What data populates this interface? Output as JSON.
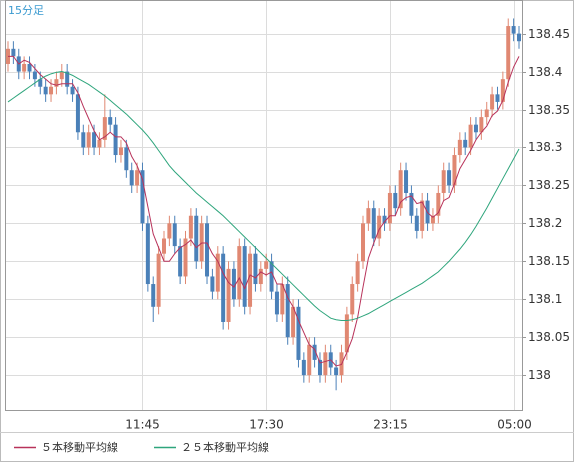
{
  "chart_data": {
    "type": "candlestick",
    "title": "15分足",
    "categories": [
      null,
      null,
      null,
      null,
      null,
      null,
      null,
      null,
      null,
      null,
      null,
      null,
      null,
      null,
      null,
      null,
      null,
      null,
      null,
      null,
      null,
      null,
      null,
      null,
      null,
      "11:45",
      null,
      null,
      null,
      null,
      null,
      null,
      null,
      null,
      null,
      null,
      null,
      null,
      null,
      null,
      null,
      null,
      null,
      null,
      null,
      null,
      null,
      null,
      "17:30",
      null,
      null,
      null,
      null,
      null,
      null,
      null,
      null,
      null,
      null,
      null,
      null,
      null,
      null,
      null,
      null,
      null,
      null,
      null,
      null,
      null,
      null,
      "23:15",
      null,
      null,
      null,
      null,
      null,
      null,
      null,
      null,
      null,
      null,
      null,
      null,
      null,
      null,
      null,
      null,
      null,
      null,
      null,
      null,
      null,
      null,
      "05:00",
      null
    ],
    "open": [
      138.41,
      138.43,
      138.42,
      138.4,
      138.41,
      138.4,
      138.39,
      138.38,
      138.37,
      138.38,
      138.39,
      138.4,
      138.38,
      138.37,
      138.32,
      138.3,
      138.32,
      138.3,
      138.31,
      138.34,
      138.33,
      138.29,
      138.3,
      138.27,
      138.25,
      138.27,
      138.2,
      138.12,
      138.09,
      138.16,
      138.18,
      138.2,
      138.17,
      138.13,
      138.18,
      138.21,
      138.15,
      138.2,
      138.13,
      138.11,
      138.16,
      138.07,
      138.14,
      138.1,
      138.17,
      138.09,
      138.16,
      138.12,
      138.14,
      138.15,
      138.11,
      138.08,
      138.12,
      138.05,
      138.09,
      138.02,
      138.0,
      138.04,
      138.02,
      138.0,
      138.03,
      138.01,
      138.0,
      138.03,
      138.08,
      138.12,
      138.15,
      138.2,
      138.22,
      138.18,
      138.21,
      138.2,
      138.24,
      138.22,
      138.27,
      138.24,
      138.21,
      138.19,
      138.23,
      138.2,
      138.21,
      138.24,
      138.27,
      138.25,
      138.29,
      138.31,
      138.3,
      138.33,
      138.32,
      138.34,
      138.35,
      138.37,
      138.36,
      138.39,
      138.46,
      138.45
    ],
    "high": [
      138.44,
      138.44,
      138.43,
      138.42,
      138.42,
      138.41,
      138.4,
      138.39,
      138.39,
      138.4,
      138.41,
      138.41,
      138.39,
      138.38,
      138.33,
      138.33,
      138.33,
      138.32,
      138.37,
      138.35,
      138.34,
      138.31,
      138.31,
      138.28,
      138.28,
      138.28,
      138.21,
      138.13,
      138.17,
      138.19,
      138.21,
      138.21,
      138.18,
      138.19,
      138.22,
      138.22,
      138.21,
      138.21,
      138.14,
      138.17,
      138.17,
      138.15,
      138.15,
      138.18,
      138.18,
      138.17,
      138.17,
      138.15,
      138.16,
      138.16,
      138.12,
      138.13,
      138.13,
      138.1,
      138.1,
      138.03,
      138.05,
      138.05,
      138.03,
      138.04,
      138.04,
      138.02,
      138.04,
      138.09,
      138.13,
      138.16,
      138.21,
      138.23,
      138.23,
      138.22,
      138.22,
      138.25,
      138.25,
      138.28,
      138.28,
      138.25,
      138.22,
      138.24,
      138.24,
      138.22,
      138.25,
      138.28,
      138.28,
      138.3,
      138.32,
      138.32,
      138.34,
      138.34,
      138.35,
      138.36,
      138.38,
      138.38,
      138.4,
      138.47,
      138.47,
      138.46
    ],
    "low": [
      138.4,
      138.41,
      138.39,
      138.39,
      138.39,
      138.38,
      138.37,
      138.36,
      138.36,
      138.37,
      138.38,
      138.37,
      138.36,
      138.31,
      138.29,
      138.29,
      138.29,
      138.29,
      138.3,
      138.32,
      138.28,
      138.28,
      138.26,
      138.24,
      138.24,
      138.19,
      138.11,
      138.07,
      138.08,
      138.15,
      138.17,
      138.16,
      138.12,
      138.12,
      138.17,
      138.14,
      138.14,
      138.12,
      138.1,
      138.1,
      138.06,
      138.06,
      138.09,
      138.09,
      138.08,
      138.08,
      138.11,
      138.11,
      138.13,
      138.1,
      138.07,
      138.07,
      138.04,
      138.04,
      138.01,
      137.99,
      137.99,
      138.01,
      137.99,
      137.99,
      138.0,
      137.98,
      137.99,
      138.02,
      138.07,
      138.11,
      138.14,
      138.19,
      138.17,
      138.17,
      138.19,
      138.19,
      138.21,
      138.21,
      138.23,
      138.2,
      138.18,
      138.18,
      138.19,
      138.19,
      138.2,
      138.23,
      138.24,
      138.24,
      138.28,
      138.29,
      138.29,
      138.31,
      138.31,
      138.33,
      138.34,
      138.35,
      138.35,
      138.38,
      138.44,
      138.43
    ],
    "close": [
      138.43,
      138.42,
      138.4,
      138.41,
      138.4,
      138.39,
      138.38,
      138.37,
      138.38,
      138.39,
      138.4,
      138.38,
      138.37,
      138.32,
      138.3,
      138.32,
      138.3,
      138.31,
      138.34,
      138.33,
      138.29,
      138.3,
      138.27,
      138.25,
      138.27,
      138.2,
      138.12,
      138.09,
      138.16,
      138.18,
      138.2,
      138.17,
      138.13,
      138.18,
      138.21,
      138.15,
      138.2,
      138.13,
      138.11,
      138.16,
      138.07,
      138.14,
      138.1,
      138.17,
      138.09,
      138.16,
      138.12,
      138.14,
      138.15,
      138.11,
      138.08,
      138.12,
      138.05,
      138.09,
      138.02,
      138.0,
      138.04,
      138.02,
      138.0,
      138.03,
      138.01,
      138.0,
      138.03,
      138.08,
      138.12,
      138.15,
      138.2,
      138.22,
      138.18,
      138.21,
      138.2,
      138.24,
      138.22,
      138.27,
      138.24,
      138.21,
      138.19,
      138.23,
      138.2,
      138.21,
      138.24,
      138.27,
      138.25,
      138.29,
      138.31,
      138.3,
      138.33,
      138.32,
      138.34,
      138.35,
      138.37,
      138.36,
      138.39,
      138.46,
      138.45,
      138.44
    ],
    "up_color": "#e08872",
    "down_color": "#4a80b8",
    "series": [
      {
        "name": "５本移動平均線",
        "color": "#b8325a",
        "values": [
          138.42,
          138.42,
          138.41,
          138.415,
          138.412,
          138.404,
          138.396,
          138.39,
          138.384,
          138.382,
          138.384,
          138.384,
          138.384,
          138.372,
          138.354,
          138.338,
          138.322,
          138.31,
          138.314,
          138.32,
          138.314,
          138.314,
          138.306,
          138.288,
          138.276,
          138.258,
          138.222,
          138.186,
          138.168,
          138.15,
          138.15,
          138.16,
          138.168,
          138.172,
          138.178,
          138.168,
          138.174,
          138.174,
          138.16,
          138.15,
          138.134,
          138.122,
          138.116,
          138.128,
          138.114,
          138.132,
          138.128,
          138.136,
          138.132,
          138.136,
          138.12,
          138.12,
          138.102,
          138.09,
          138.072,
          138.056,
          138.04,
          138.034,
          138.016,
          138.018,
          138.02,
          138.012,
          138.014,
          138.03,
          138.048,
          138.076,
          138.116,
          138.154,
          138.174,
          138.192,
          138.202,
          138.21,
          138.21,
          138.228,
          138.234,
          138.236,
          138.226,
          138.228,
          138.214,
          138.208,
          138.214,
          138.23,
          138.234,
          138.252,
          138.272,
          138.284,
          138.296,
          138.31,
          138.32,
          138.328,
          138.342,
          138.348,
          138.362,
          138.386,
          138.406,
          138.42
        ]
      },
      {
        "name": "２５本移動平均線",
        "color": "#2ea57c",
        "values": [
          138.36,
          138.365,
          138.37,
          138.375,
          138.38,
          138.385,
          138.39,
          138.394,
          138.397,
          138.399,
          138.4,
          138.398,
          138.395,
          138.391,
          138.387,
          138.383,
          138.378,
          138.373,
          138.368,
          138.362,
          138.356,
          138.35,
          138.344,
          138.337,
          138.33,
          138.323,
          138.315,
          138.306,
          138.296,
          138.286,
          138.276,
          138.268,
          138.261,
          138.254,
          138.247,
          138.24,
          138.234,
          138.228,
          138.222,
          138.216,
          138.21,
          138.203,
          138.196,
          138.189,
          138.182,
          138.175,
          138.168,
          138.161,
          138.154,
          138.147,
          138.14,
          138.133,
          138.126,
          138.119,
          138.112,
          138.105,
          138.098,
          138.091,
          138.085,
          138.08,
          138.075,
          138.073,
          138.072,
          138.072,
          138.073,
          138.075,
          138.078,
          138.081,
          138.085,
          138.089,
          138.093,
          138.097,
          138.101,
          138.105,
          138.109,
          138.113,
          138.117,
          138.121,
          138.126,
          138.131,
          138.136,
          138.143,
          138.15,
          138.158,
          138.166,
          138.175,
          138.185,
          138.196,
          138.208,
          138.22,
          138.233,
          138.246,
          138.259,
          138.272,
          138.285,
          138.298
        ]
      }
    ],
    "ylim": [
      137.954,
      138.493
    ],
    "yticks": [
      138,
      138.05,
      138.1,
      138.15,
      138.2,
      138.25,
      138.3,
      138.35,
      138.4,
      138.45
    ],
    "grid": true
  }
}
